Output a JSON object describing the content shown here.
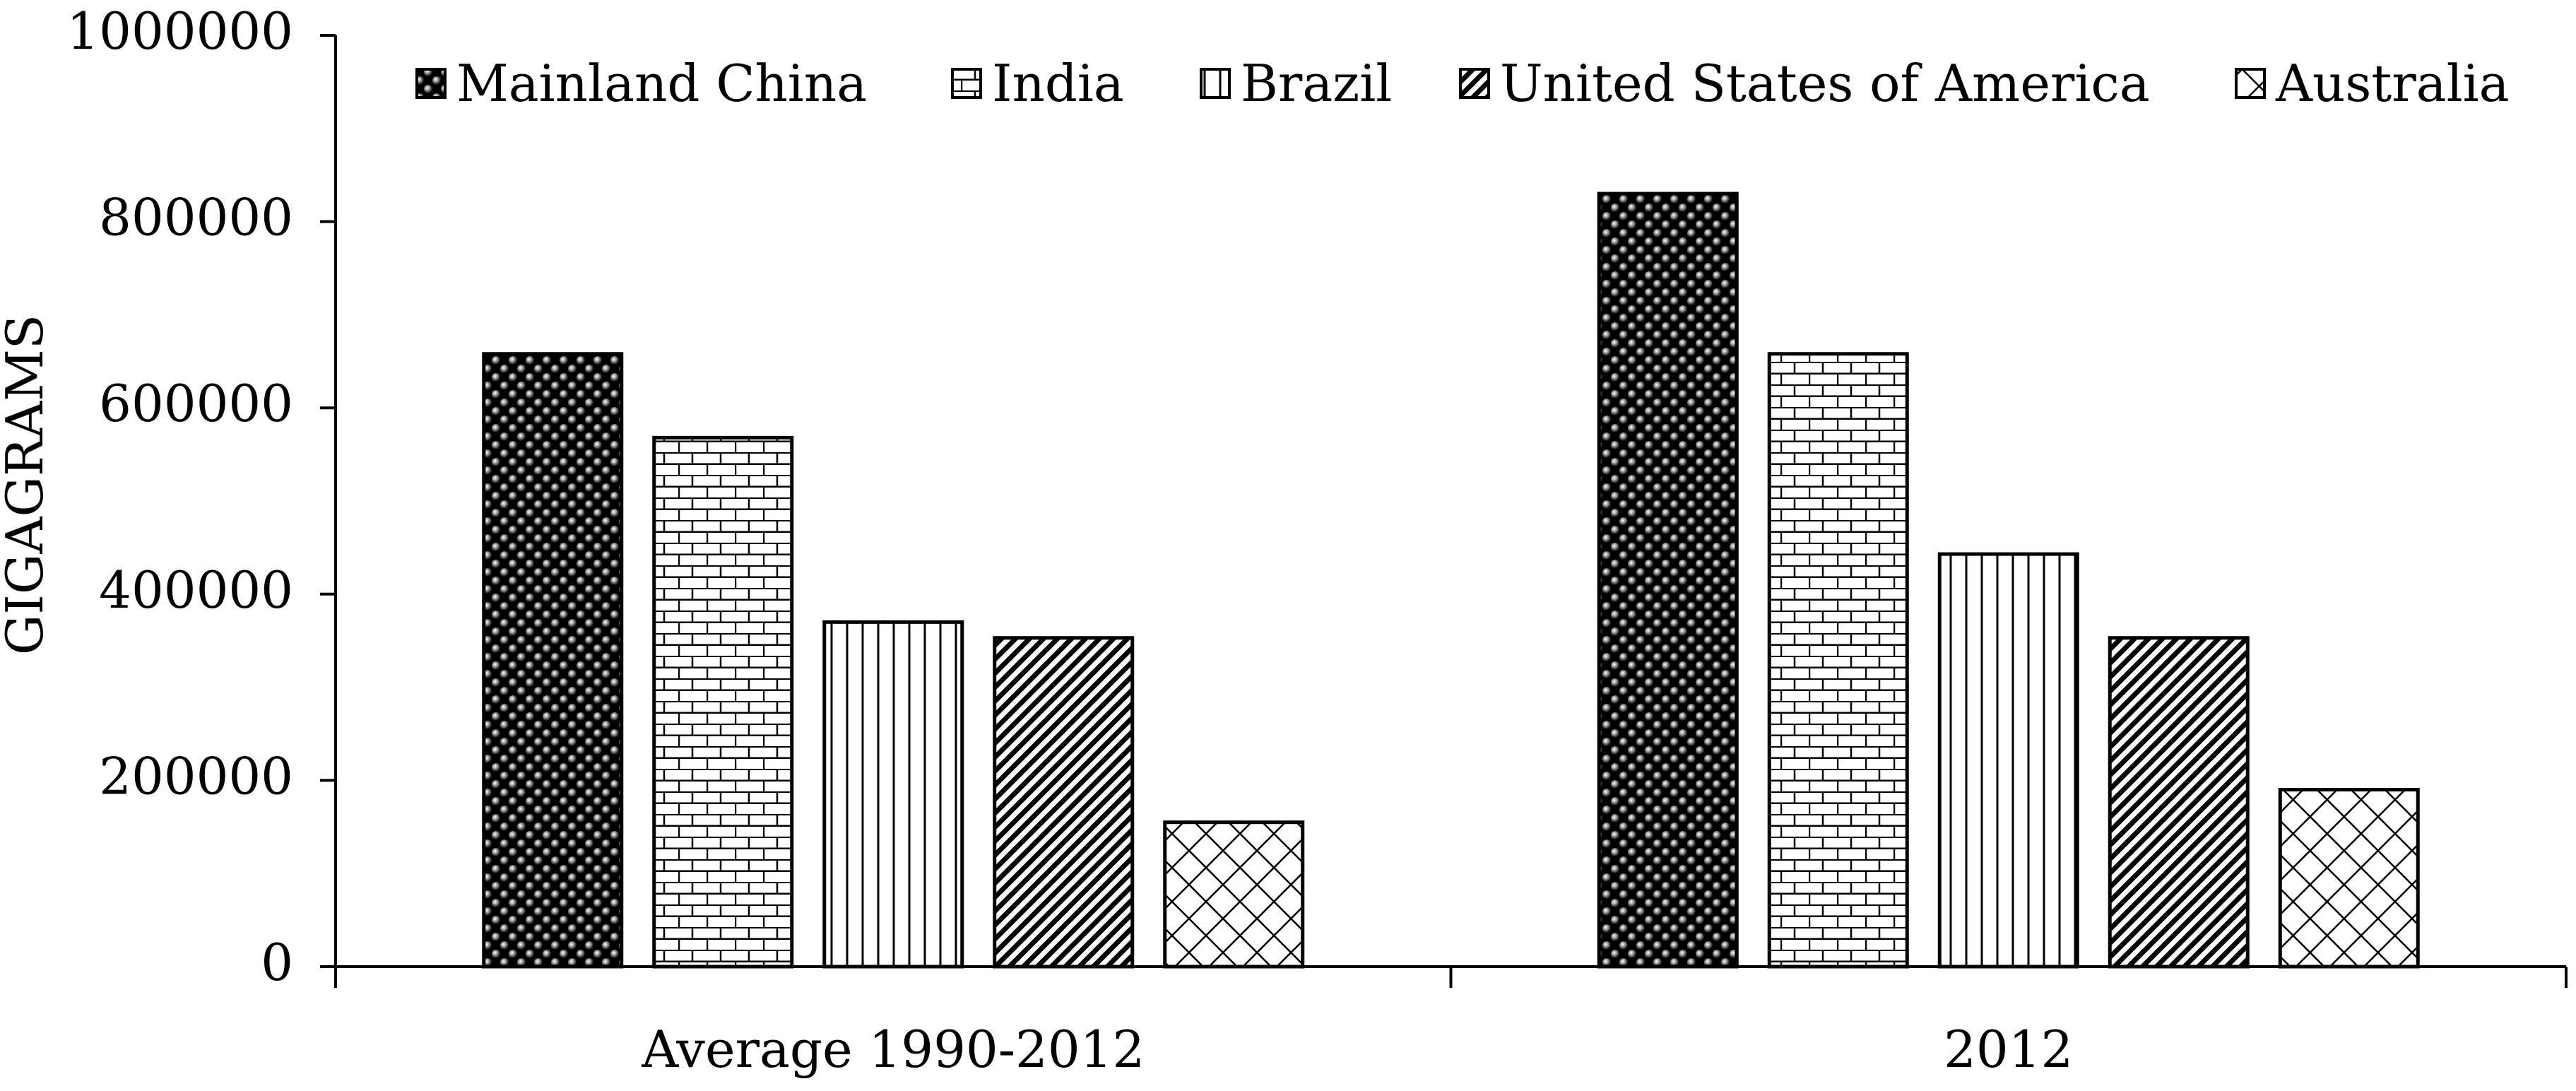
{
  "chart_data": {
    "type": "bar",
    "title": "",
    "xlabel": "",
    "ylabel": "GIGAGRAMS",
    "ylim": [
      0,
      1000000
    ],
    "yticks": [
      0,
      200000,
      400000,
      600000,
      800000,
      1000000
    ],
    "grid": false,
    "legend_position": "top",
    "categories": [
      "Average 1990-2012",
      "2012"
    ],
    "series": [
      {
        "name": "Mainland China",
        "pattern": "dots",
        "values": [
          658000,
          830000
        ]
      },
      {
        "name": "India",
        "pattern": "brick",
        "values": [
          568000,
          658000
        ]
      },
      {
        "name": "Brazil",
        "pattern": "vertical-lines",
        "values": [
          370000,
          443000
        ]
      },
      {
        "name": "United States of America",
        "pattern": "diagonal-hatch",
        "values": [
          353000,
          353000
        ]
      },
      {
        "name": "Australia",
        "pattern": "diamond-grid",
        "values": [
          155000,
          190000
        ]
      }
    ]
  }
}
